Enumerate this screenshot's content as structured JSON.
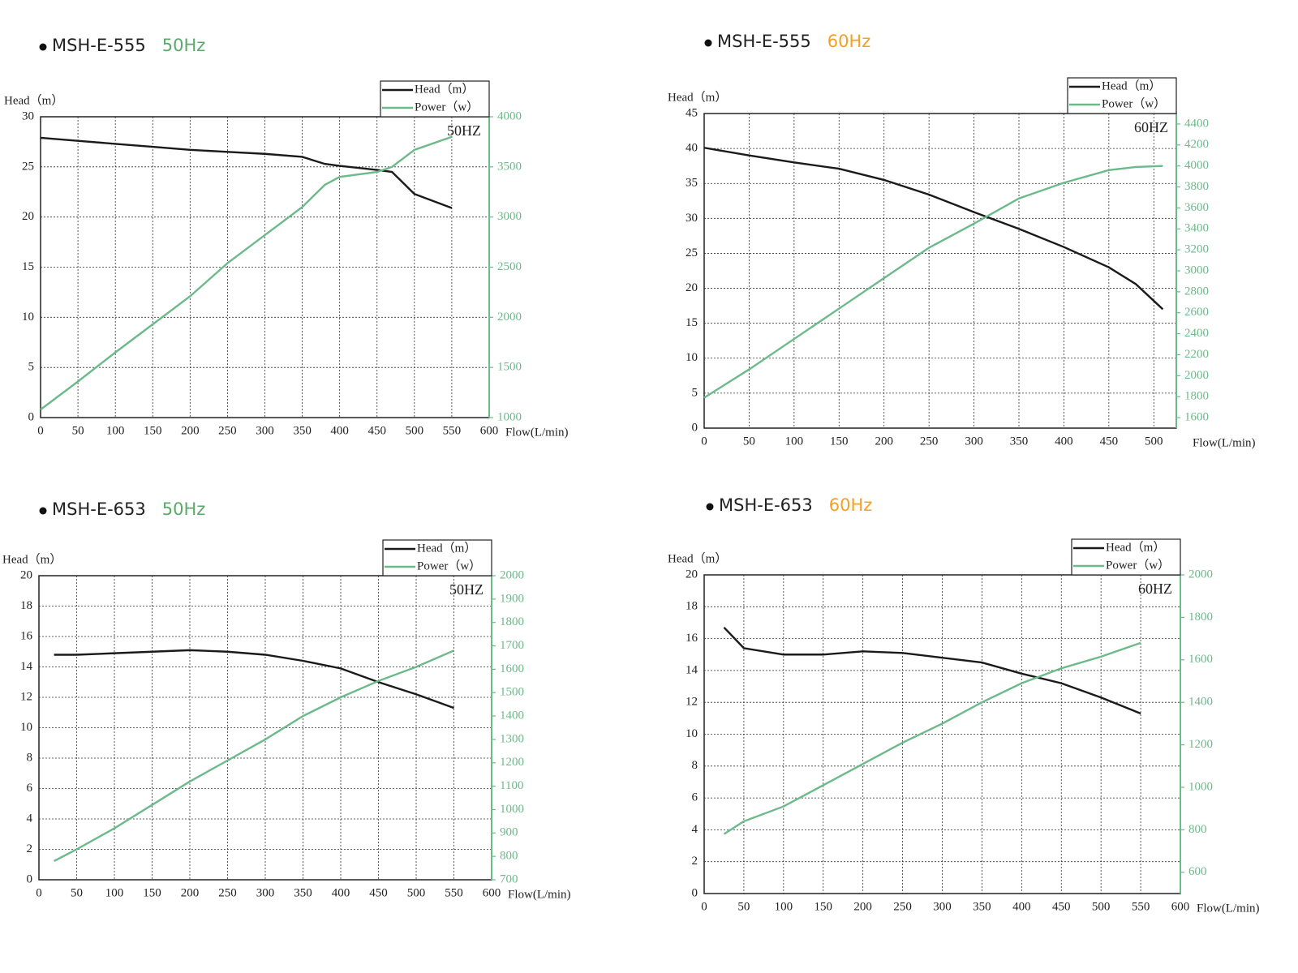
{
  "chart_data": [
    {
      "type": "line",
      "title": "MSH-E-555",
      "subtitle": "50Hz",
      "subtitle_color": "#5aaa6b",
      "ylabel": "Head（m）",
      "xlabel": "Flow(L/min)",
      "annotation": "50HZ",
      "x": [
        0,
        50,
        100,
        150,
        200,
        250,
        300,
        350,
        380,
        400,
        450,
        470,
        500,
        550
      ],
      "series": [
        {
          "name": "Head（m）",
          "color": "#1a1a1a",
          "values": [
            27.9,
            27.6,
            27.3,
            27,
            26.7,
            26.5,
            26.3,
            26,
            25.3,
            25.1,
            24.7,
            24.5,
            22.3,
            20.9
          ]
        },
        {
          "name": "Power（w）",
          "color": "#6cb98a",
          "axis": "y2",
          "values": [
            1080,
            1360,
            1650,
            1930,
            2210,
            2540,
            2820,
            3100,
            3320,
            3400,
            3450,
            3500,
            3670,
            3800
          ]
        }
      ],
      "xlim": [
        0,
        600
      ],
      "xticks": [
        0,
        50,
        100,
        150,
        200,
        250,
        300,
        350,
        400,
        450,
        500,
        550,
        600
      ],
      "ylim": [
        0,
        30
      ],
      "yticks": [
        0,
        5,
        10,
        15,
        20,
        25,
        30
      ],
      "y2lim": [
        1000,
        4000
      ],
      "y2ticks": [
        1000,
        1500,
        2000,
        2500,
        3000,
        3500,
        4000
      ],
      "grid": true
    },
    {
      "type": "line",
      "title": "MSH-E-555",
      "subtitle": "60Hz",
      "subtitle_color": "#f5a023",
      "ylabel": "Head（m）",
      "xlabel": "Flow(L/min)",
      "annotation": "60HZ",
      "x": [
        0,
        50,
        100,
        150,
        200,
        250,
        300,
        350,
        400,
        450,
        480,
        510
      ],
      "series": [
        {
          "name": "Head（m）",
          "color": "#1a1a1a",
          "values": [
            40.1,
            39,
            38,
            37.1,
            35.5,
            33.4,
            30.9,
            28.5,
            25.9,
            23,
            20.6,
            17
          ]
        },
        {
          "name": "Power（w）",
          "color": "#6cb98a",
          "axis": "y2",
          "values": [
            1790,
            2060,
            2350,
            2640,
            2930,
            3220,
            3450,
            3690,
            3840,
            3960,
            3990,
            4000
          ]
        }
      ],
      "xlim": [
        0,
        525
      ],
      "xticks": [
        0,
        50,
        100,
        150,
        200,
        250,
        300,
        350,
        400,
        450,
        500
      ],
      "ylim": [
        0,
        45
      ],
      "yticks": [
        0,
        5,
        10,
        15,
        20,
        25,
        30,
        35,
        40,
        45
      ],
      "y2lim": [
        1500,
        4500
      ],
      "y2ticks": [
        1600,
        1800,
        2000,
        2200,
        2400,
        2600,
        2800,
        3000,
        3200,
        3400,
        3600,
        3800,
        4000,
        4200,
        4400
      ],
      "grid": true
    },
    {
      "type": "line",
      "title": "MSH-E-653",
      "subtitle": "50Hz",
      "subtitle_color": "#5aaa6b",
      "ylabel": "Head（m）",
      "xlabel": "Flow(L/min)",
      "annotation": "50HZ",
      "x": [
        20,
        50,
        100,
        150,
        200,
        250,
        300,
        350,
        400,
        450,
        500,
        550
      ],
      "series": [
        {
          "name": "Head（m）",
          "color": "#1a1a1a",
          "values": [
            14.8,
            14.8,
            14.9,
            15,
            15.1,
            15,
            14.8,
            14.4,
            13.9,
            13,
            12.2,
            11.3
          ]
        },
        {
          "name": "Power（w）",
          "color": "#6cb98a",
          "axis": "y2",
          "values": [
            780,
            830,
            920,
            1020,
            1120,
            1210,
            1300,
            1400,
            1480,
            1550,
            1610,
            1680
          ]
        }
      ],
      "xlim": [
        0,
        600
      ],
      "xticks": [
        0,
        50,
        100,
        150,
        200,
        250,
        300,
        350,
        400,
        450,
        500,
        550,
        600
      ],
      "ylim": [
        0,
        20
      ],
      "yticks": [
        0,
        2,
        4,
        6,
        8,
        10,
        12,
        14,
        16,
        18,
        20
      ],
      "y2lim": [
        700,
        2000
      ],
      "y2ticks": [
        700,
        800,
        900,
        1000,
        1100,
        1200,
        1300,
        1400,
        1500,
        1600,
        1700,
        1800,
        1900,
        2000
      ],
      "grid": true
    },
    {
      "type": "line",
      "title": "MSH-E-653",
      "subtitle": "60Hz",
      "subtitle_color": "#f5a023",
      "ylabel": "Head（m）",
      "xlabel": "Flow(L/min)",
      "annotation": "60HZ",
      "x": [
        25,
        50,
        100,
        150,
        200,
        250,
        300,
        350,
        400,
        450,
        500,
        550
      ],
      "series": [
        {
          "name": "Head（m）",
          "color": "#1a1a1a",
          "values": [
            16.7,
            15.4,
            15,
            15,
            15.2,
            15.1,
            14.8,
            14.5,
            13.8,
            13.2,
            12.3,
            11.3
          ]
        },
        {
          "name": "Power（w）",
          "color": "#6cb98a",
          "axis": "y2",
          "values": [
            780,
            840,
            910,
            1010,
            1110,
            1210,
            1300,
            1400,
            1490,
            1560,
            1615,
            1680
          ]
        }
      ],
      "xlim": [
        0,
        600
      ],
      "xticks": [
        0,
        50,
        100,
        150,
        200,
        250,
        300,
        350,
        400,
        450,
        500,
        550,
        600
      ],
      "ylim": [
        0,
        20
      ],
      "yticks": [
        0,
        2,
        4,
        6,
        8,
        10,
        12,
        14,
        16,
        18,
        20
      ],
      "y2lim": [
        500,
        2000
      ],
      "y2ticks": [
        600,
        800,
        1000,
        1200,
        1400,
        1600,
        1800,
        2000
      ],
      "grid": true
    }
  ]
}
